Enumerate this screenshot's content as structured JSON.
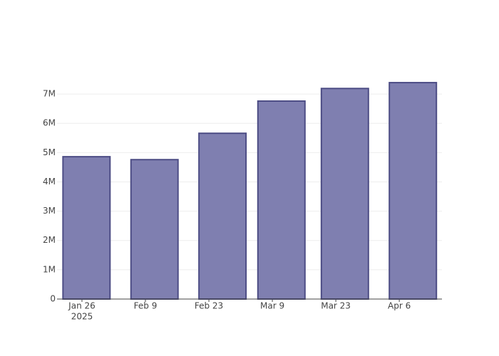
{
  "chart_data": {
    "type": "bar",
    "x": [
      "2025-01-27",
      "2025-02-11",
      "2025-02-26",
      "2025-03-11",
      "2025-03-25",
      "2025-04-09"
    ],
    "values": [
      4860000,
      4760000,
      5660000,
      6760000,
      7190000,
      7390000
    ],
    "color": "#7f7fb0",
    "edge_color": "#4d4d85",
    "xlim": [
      "2025-01-20T12:00",
      "2025-04-15T10:00"
    ],
    "xticks": [
      {
        "value": "2025-01-26",
        "label": "Jan 26"
      },
      {
        "value": "2025-02-09",
        "label": "Feb 9"
      },
      {
        "value": "2025-02-23",
        "label": "Feb 23"
      },
      {
        "value": "2025-03-09",
        "label": "Mar 9"
      },
      {
        "value": "2025-03-23",
        "label": "Mar 23"
      },
      {
        "value": "2025-04-06",
        "label": "Apr 6"
      }
    ],
    "x_year_label": "2025",
    "ylim": [
      0,
      7780000
    ],
    "yticks": [
      0,
      {
        "value": 1000000,
        "label": "1M"
      },
      {
        "value": 2000000,
        "label": "2M"
      },
      {
        "value": 3000000,
        "label": "3M"
      },
      {
        "value": 4000000,
        "label": "4M"
      },
      {
        "value": 5000000,
        "label": "5M"
      },
      {
        "value": 6000000,
        "label": "6M"
      },
      {
        "value": 7000000,
        "label": "7M"
      }
    ],
    "grid": true
  }
}
